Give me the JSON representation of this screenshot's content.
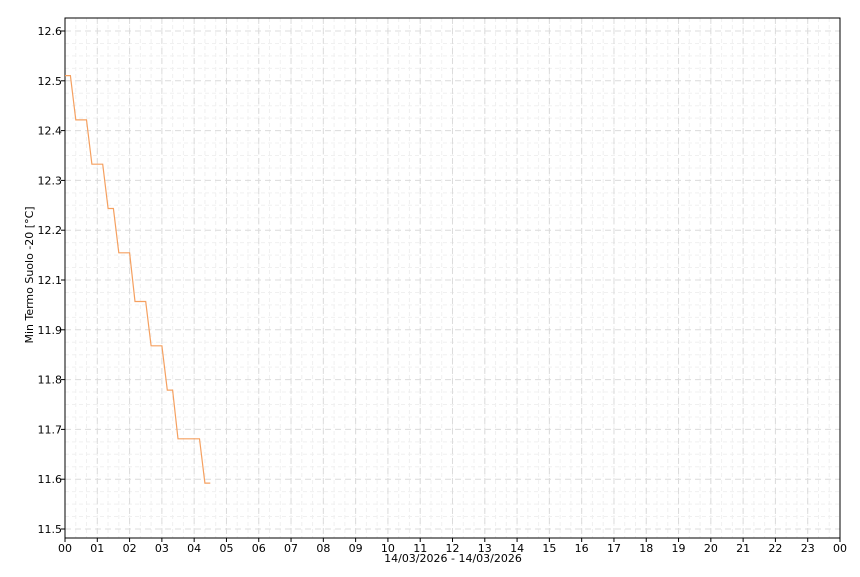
{
  "chart_data": {
    "type": "line",
    "title": "",
    "xlabel": "14/03/2026 - 14/03/2026",
    "ylabel": "Min Termo Suolo -20 [°C]",
    "x_tick_labels": [
      "00",
      "01",
      "02",
      "03",
      "04",
      "05",
      "06",
      "07",
      "08",
      "09",
      "10",
      "11",
      "12",
      "13",
      "14",
      "15",
      "16",
      "17",
      "18",
      "19",
      "20",
      "21",
      "22",
      "23",
      "00"
    ],
    "y_tick_labels": [
      "12.6",
      "12.5",
      "12.4",
      "12.3",
      "12.2",
      "12.1",
      "11.9",
      "11.8",
      "11.7",
      "11.6",
      "11.5"
    ],
    "xlim_hours": [
      0,
      24
    ],
    "ylim": [
      11.466,
      12.64
    ],
    "grid": true,
    "line_color": "#f5a060",
    "series": [
      {
        "x": [
          "00:00",
          "00:10",
          "00:20",
          "00:40",
          "00:50",
          "01:10",
          "01:20",
          "01:30",
          "01:40",
          "02:00",
          "02:10",
          "02:30",
          "02:40",
          "03:00",
          "03:10",
          "03:20",
          "03:30",
          "04:10",
          "04:20",
          "04:30"
        ],
        "values": [
          12.51,
          12.51,
          12.41,
          12.41,
          12.31,
          12.31,
          12.21,
          12.21,
          12.11,
          12.11,
          12.0,
          12.0,
          11.9,
          11.9,
          11.8,
          11.8,
          11.69,
          11.69,
          11.59,
          11.59
        ]
      }
    ]
  }
}
